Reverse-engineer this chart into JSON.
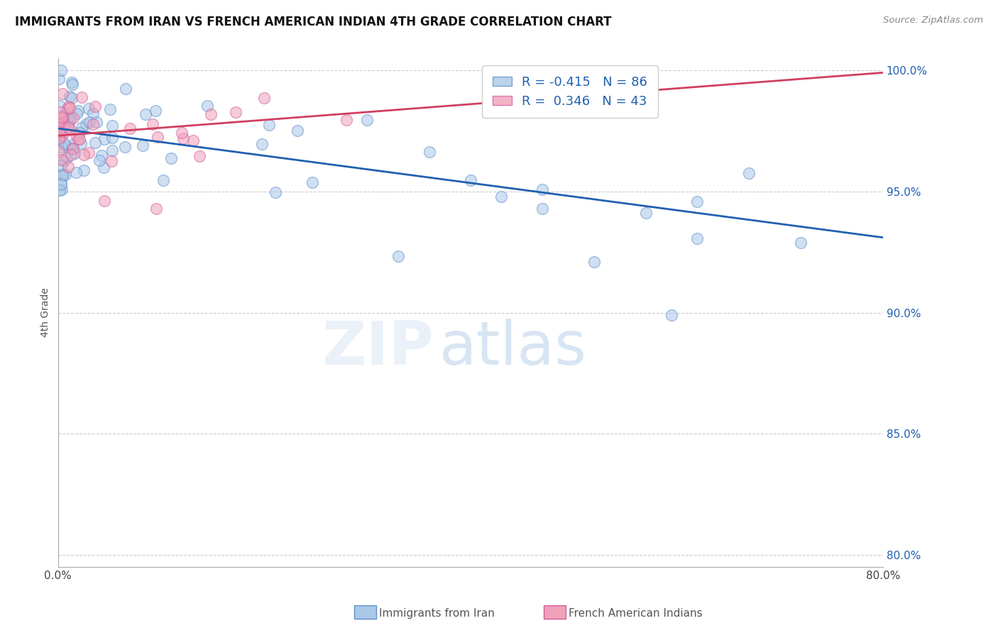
{
  "title": "IMMIGRANTS FROM IRAN VS FRENCH AMERICAN INDIAN 4TH GRADE CORRELATION CHART",
  "source": "Source: ZipAtlas.com",
  "ylabel": "4th Grade",
  "xlim": [
    0.0,
    0.8
  ],
  "ylim": [
    0.795,
    1.005
  ],
  "yticks": [
    0.8,
    0.85,
    0.9,
    0.95,
    1.0
  ],
  "ytick_labels": [
    "80.0%",
    "85.0%",
    "90.0%",
    "95.0%",
    "100.0%"
  ],
  "xticks": [
    0.0,
    0.1,
    0.2,
    0.3,
    0.4,
    0.5,
    0.6,
    0.7,
    0.8
  ],
  "xtick_labels": [
    "0.0%",
    "",
    "",
    "",
    "",
    "",
    "",
    "",
    "80.0%"
  ],
  "blue_color": "#aac8e8",
  "pink_color": "#f0a0b8",
  "blue_line_color": "#2060b0",
  "pink_line_color": "#d04060",
  "blue_R": -0.415,
  "blue_N": 86,
  "pink_R": 0.346,
  "pink_N": 43,
  "legend_label_blue": "Immigrants from Iran",
  "legend_label_pink": "French American Indians",
  "background_color": "#ffffff",
  "blue_line_x0": 0.0,
  "blue_line_x1": 0.8,
  "blue_line_y0": 0.976,
  "blue_line_y1": 0.931,
  "pink_line_x0": 0.0,
  "pink_line_x1": 0.8,
  "pink_line_y0": 0.973,
  "pink_line_y1": 0.999
}
